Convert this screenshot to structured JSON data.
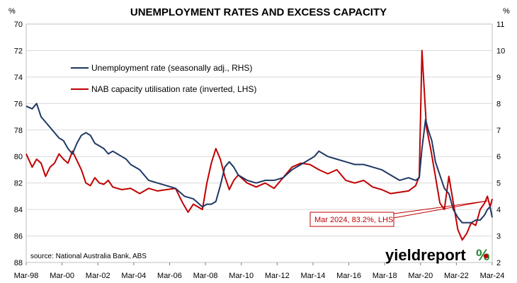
{
  "chart_data": {
    "type": "line",
    "title": "UNEMPLOYMENT RATES AND EXCESS CAPACITY",
    "left_axis": {
      "unit": "%",
      "inverted": true,
      "ylim": [
        70,
        88
      ],
      "ticks": [
        "70",
        "72",
        "74",
        "76",
        "78",
        "80",
        "82",
        "84",
        "86",
        "88"
      ]
    },
    "right_axis": {
      "unit": "%",
      "ylim": [
        2,
        11
      ],
      "ticks": [
        "11",
        "10",
        "9",
        "8",
        "7",
        "6",
        "5",
        "4",
        "3",
        "2"
      ]
    },
    "x_ticks": [
      "Mar-98",
      "Mar-00",
      "Mar-02",
      "Mar-04",
      "Mar-06",
      "Mar-08",
      "Mar-10",
      "Mar-12",
      "Mar-14",
      "Mar-16",
      "Mar-18",
      "Mar-20",
      "Mar-22",
      "Mar-24"
    ],
    "xlim": [
      1998.17,
      2024.17
    ],
    "grid": true,
    "legend_position": "top-left",
    "series": [
      {
        "name": "Unemployment rate (seasonally adj., RHS)",
        "axis": "right",
        "color": "#1f3864",
        "x": [
          1998.17,
          1998.5,
          1998.75,
          1999.0,
          1999.25,
          1999.5,
          1999.75,
          2000.0,
          2000.25,
          2000.5,
          2000.75,
          2001.0,
          2001.25,
          2001.5,
          2001.75,
          2002.0,
          2002.25,
          2002.5,
          2002.75,
          2003.0,
          2003.25,
          2003.5,
          2003.75,
          2004.0,
          2004.25,
          2004.5,
          2004.75,
          2005.0,
          2005.5,
          2006.0,
          2006.5,
          2007.0,
          2007.5,
          2008.0,
          2008.25,
          2008.5,
          2008.75,
          2009.0,
          2009.25,
          2009.5,
          2009.75,
          2010.0,
          2010.5,
          2011.0,
          2011.5,
          2012.0,
          2012.5,
          2013.0,
          2013.5,
          2014.0,
          2014.25,
          2014.5,
          2014.75,
          2015.0,
          2015.5,
          2016.0,
          2016.5,
          2017.0,
          2017.5,
          2018.0,
          2018.5,
          2019.0,
          2019.5,
          2019.9,
          2020.1,
          2020.25,
          2020.45,
          2020.6,
          2020.8,
          2021.0,
          2021.25,
          2021.5,
          2021.75,
          2022.0,
          2022.25,
          2022.5,
          2022.75,
          2023.0,
          2023.25,
          2023.5,
          2023.75,
          2023.9,
          2024.05,
          2024.17
        ],
        "values": [
          7.9,
          7.8,
          8.0,
          7.5,
          7.3,
          7.1,
          6.9,
          6.7,
          6.6,
          6.3,
          6.1,
          6.5,
          6.8,
          6.9,
          6.8,
          6.5,
          6.4,
          6.3,
          6.1,
          6.2,
          6.1,
          6.0,
          5.9,
          5.7,
          5.6,
          5.5,
          5.3,
          5.1,
          5.0,
          4.9,
          4.8,
          4.5,
          4.4,
          4.1,
          4.2,
          4.2,
          4.3,
          4.9,
          5.6,
          5.8,
          5.6,
          5.3,
          5.1,
          5.0,
          5.1,
          5.1,
          5.2,
          5.5,
          5.7,
          5.9,
          6.0,
          6.2,
          6.1,
          6.0,
          5.9,
          5.8,
          5.7,
          5.7,
          5.6,
          5.5,
          5.3,
          5.1,
          5.2,
          5.1,
          5.2,
          6.3,
          7.4,
          7.0,
          6.6,
          5.8,
          5.3,
          4.8,
          4.6,
          4.0,
          3.7,
          3.5,
          3.5,
          3.5,
          3.6,
          3.6,
          3.8,
          4.0,
          4.1,
          3.7
        ]
      },
      {
        "name": "NAB capacity utilisation rate (inverted, LHS)",
        "axis": "left",
        "color": "#c00000",
        "x": [
          1998.17,
          1998.5,
          1998.75,
          1999.0,
          1999.25,
          1999.5,
          1999.75,
          2000.0,
          2000.25,
          2000.5,
          2000.75,
          2001.0,
          2001.25,
          2001.5,
          2001.75,
          2002.0,
          2002.25,
          2002.5,
          2002.75,
          2003.0,
          2003.5,
          2004.0,
          2004.5,
          2005.0,
          2005.5,
          2006.0,
          2006.5,
          2006.9,
          2007.2,
          2007.5,
          2007.75,
          2008.0,
          2008.25,
          2008.5,
          2008.75,
          2009.0,
          2009.25,
          2009.5,
          2009.75,
          2010.0,
          2010.5,
          2011.0,
          2011.5,
          2012.0,
          2012.5,
          2013.0,
          2013.5,
          2014.0,
          2014.5,
          2015.0,
          2015.5,
          2016.0,
          2016.5,
          2017.0,
          2017.5,
          2018.0,
          2018.5,
          2019.0,
          2019.5,
          2019.9,
          2020.1,
          2020.25,
          2020.5,
          2020.75,
          2021.0,
          2021.25,
          2021.5,
          2021.75,
          2022.0,
          2022.25,
          2022.5,
          2022.75,
          2023.0,
          2023.25,
          2023.5,
          2023.75,
          2023.9,
          2024.05,
          2024.17
        ],
        "values": [
          79.8,
          80.8,
          80.2,
          80.5,
          81.5,
          80.8,
          80.5,
          79.8,
          80.2,
          80.5,
          79.6,
          80.3,
          81.0,
          82.0,
          82.2,
          81.6,
          82.0,
          82.1,
          81.8,
          82.3,
          82.5,
          82.4,
          82.8,
          82.4,
          82.6,
          82.5,
          82.4,
          83.5,
          84.2,
          83.6,
          83.8,
          84.0,
          82.0,
          80.5,
          79.4,
          80.2,
          81.5,
          82.5,
          81.8,
          81.4,
          82.0,
          82.3,
          82.0,
          82.4,
          81.6,
          80.8,
          80.5,
          80.6,
          81.0,
          81.3,
          81.0,
          81.8,
          82.0,
          81.8,
          82.3,
          82.5,
          82.8,
          82.7,
          82.6,
          82.2,
          81.5,
          72.0,
          77.8,
          79.5,
          81.5,
          83.5,
          84.0,
          81.5,
          83.5,
          85.5,
          86.3,
          85.8,
          85.0,
          85.2,
          84.0,
          83.5,
          83.0,
          83.8,
          83.2
        ]
      }
    ],
    "annotation": "Mar 2024, 83.2%, LHS"
  },
  "source_note": "source: National Australia Bank, ABS",
  "brand": {
    "text": "yieldreport",
    "symbol": "%"
  }
}
